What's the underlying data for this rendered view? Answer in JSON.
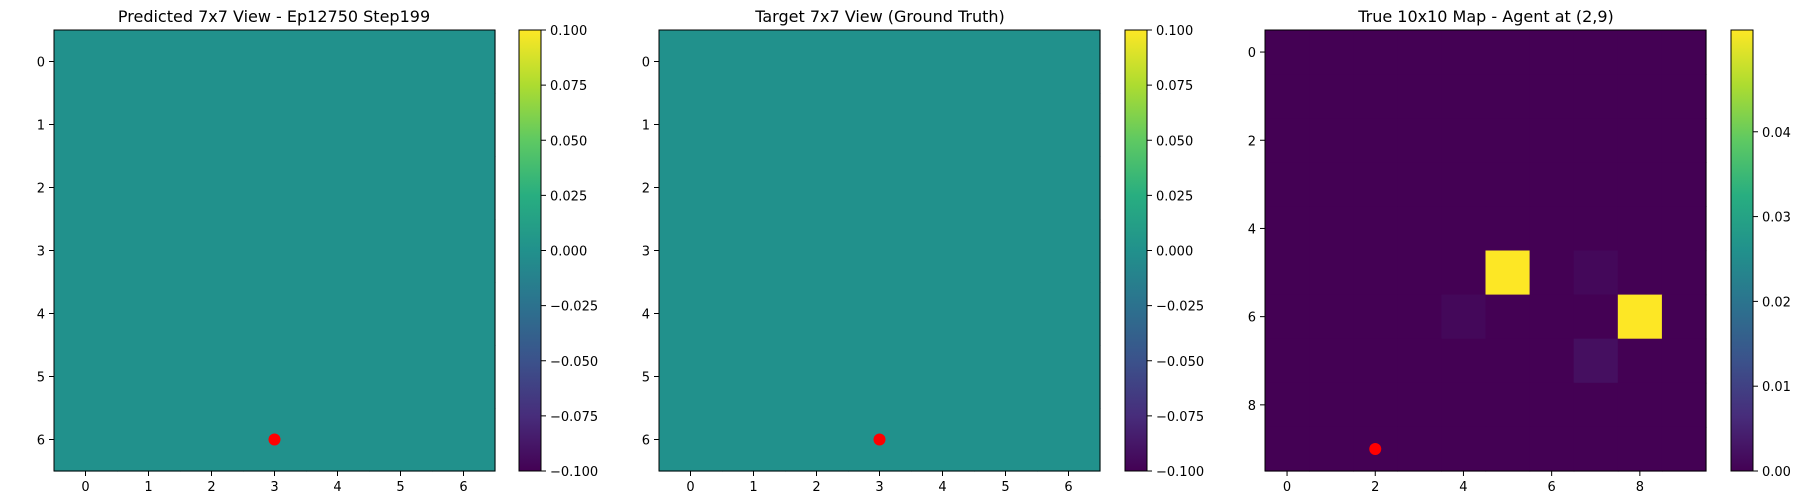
{
  "chart_data": [
    {
      "type": "heatmap",
      "title": "Predicted 7x7 View - Ep12750 Step199",
      "colormap": "viridis",
      "grid": false,
      "rows": 7,
      "cols": 7,
      "xticks": [
        0,
        1,
        2,
        3,
        4,
        5,
        6
      ],
      "yticks": [
        0,
        1,
        2,
        3,
        4,
        5,
        6
      ],
      "values": [
        [
          0,
          0,
          0,
          0,
          0,
          0,
          0
        ],
        [
          0,
          0,
          0,
          0,
          0,
          0,
          0
        ],
        [
          0,
          0,
          0,
          0,
          0,
          0,
          0
        ],
        [
          0,
          0,
          0,
          0,
          0,
          0,
          0
        ],
        [
          0,
          0,
          0,
          0,
          0,
          0,
          0
        ],
        [
          0,
          0,
          0,
          0,
          0,
          0,
          0
        ],
        [
          0,
          0,
          0,
          0,
          0,
          0,
          0
        ]
      ],
      "vmin": -0.1,
      "vmax": 0.1,
      "colorbar_ticks": [
        "0.100",
        "0.075",
        "0.050",
        "0.025",
        "0.000",
        "−0.025",
        "−0.050",
        "−0.075",
        "−0.100"
      ],
      "colorbar_tick_values": [
        0.1,
        0.075,
        0.05,
        0.025,
        0.0,
        -0.025,
        -0.05,
        -0.075,
        -0.1
      ],
      "marker": {
        "x": 3,
        "y": 6,
        "color": "#ff0000"
      }
    },
    {
      "type": "heatmap",
      "title": "Target 7x7 View (Ground Truth)",
      "colormap": "viridis",
      "grid": false,
      "rows": 7,
      "cols": 7,
      "xticks": [
        0,
        1,
        2,
        3,
        4,
        5,
        6
      ],
      "yticks": [
        0,
        1,
        2,
        3,
        4,
        5,
        6
      ],
      "values": [
        [
          0,
          0,
          0,
          0,
          0,
          0,
          0
        ],
        [
          0,
          0,
          0,
          0,
          0,
          0,
          0
        ],
        [
          0,
          0,
          0,
          0,
          0,
          0,
          0
        ],
        [
          0,
          0,
          0,
          0,
          0,
          0,
          0
        ],
        [
          0,
          0,
          0,
          0,
          0,
          0,
          0
        ],
        [
          0,
          0,
          0,
          0,
          0,
          0,
          0
        ],
        [
          0,
          0,
          0,
          0,
          0,
          0,
          0
        ]
      ],
      "vmin": -0.1,
      "vmax": 0.1,
      "colorbar_ticks": [
        "0.100",
        "0.075",
        "0.050",
        "0.025",
        "0.000",
        "−0.025",
        "−0.050",
        "−0.075",
        "−0.100"
      ],
      "colorbar_tick_values": [
        0.1,
        0.075,
        0.05,
        0.025,
        0.0,
        -0.025,
        -0.05,
        -0.075,
        -0.1
      ],
      "marker": {
        "x": 3,
        "y": 6,
        "color": "#ff0000"
      }
    },
    {
      "type": "heatmap",
      "title": "True 10x10 Map - Agent at (2,9)",
      "colormap": "viridis",
      "grid": false,
      "rows": 10,
      "cols": 10,
      "xticks": [
        0,
        2,
        4,
        6,
        8
      ],
      "yticks": [
        0,
        2,
        4,
        6,
        8
      ],
      "values": [
        [
          0,
          0,
          0,
          0,
          0,
          0,
          0,
          0,
          0,
          0
        ],
        [
          0,
          0,
          0,
          0,
          0,
          0,
          0,
          0,
          0,
          0
        ],
        [
          0,
          0,
          0,
          0,
          0,
          0,
          0,
          0,
          0,
          0
        ],
        [
          0,
          0,
          0,
          0,
          0,
          0,
          0,
          0,
          0,
          0
        ],
        [
          0,
          0,
          0,
          0,
          0,
          0,
          0,
          0,
          0,
          0
        ],
        [
          0,
          0,
          0,
          0,
          0,
          0.052,
          0,
          0.001,
          0,
          0
        ],
        [
          0,
          0,
          0,
          0,
          0.001,
          0,
          0,
          0,
          0.052,
          0
        ],
        [
          0,
          0,
          0,
          0,
          0,
          0,
          0,
          0.002,
          0,
          0
        ],
        [
          0,
          0,
          0,
          0,
          0,
          0,
          0,
          0,
          0,
          0
        ],
        [
          0,
          0,
          0,
          0,
          0,
          0,
          0,
          0,
          0,
          0
        ]
      ],
      "vmin": 0,
      "vmax": 0.052,
      "colorbar_ticks": [
        "0.04",
        "0.03",
        "0.02",
        "0.01",
        "0.00"
      ],
      "colorbar_tick_values": [
        0.04,
        0.03,
        0.02,
        0.01,
        0.0
      ],
      "marker": {
        "x": 2,
        "y": 9,
        "color": "#ff0000"
      }
    }
  ]
}
